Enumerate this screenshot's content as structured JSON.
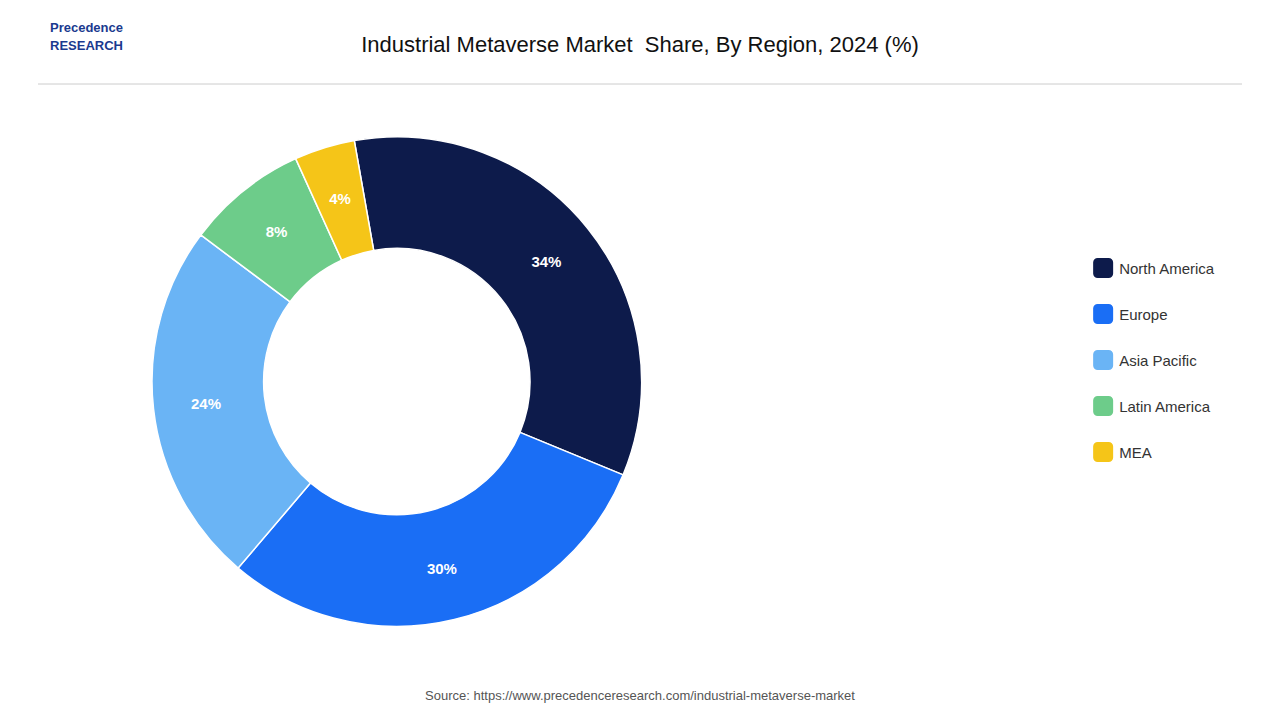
{
  "chart_data": {
    "type": "pie",
    "title": "Industrial Metaverse Market  Share, By Region, 2024 (%)",
    "categories": [
      "North America",
      "Europe",
      "Asia Pacific",
      "Latin America",
      "MEA"
    ],
    "values": [
      34,
      30,
      24,
      8,
      4
    ],
    "value_labels": [
      "34%",
      "30%",
      "24%",
      "8%",
      "4%"
    ],
    "data_labels": true,
    "colors": [
      "#0d1b4b",
      "#1a6ef5",
      "#6ab4f5",
      "#6dcc8a",
      "#f5c518"
    ],
    "legend": "right",
    "annotations": [
      "Precedence\nRESEARCH",
      "Source: https://www.precedenceresearch.com/industrial-metaverse-market"
    ]
  }
}
